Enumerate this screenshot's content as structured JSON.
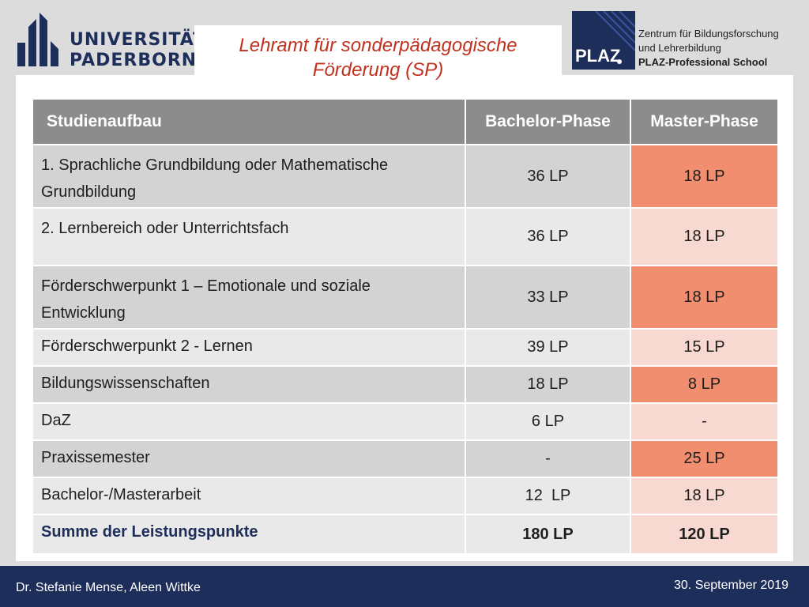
{
  "header": {
    "university_line1": "UNIVERSITÄT",
    "university_line2": "PADERBORN",
    "title_line1": "Lehramt für sonderpädagogische",
    "title_line2": "Förderung (SP)",
    "plaz_word": "PLAZ",
    "plaz_line1": "Zentrum für Bildungsforschung",
    "plaz_line2": "und Lehrerbildung",
    "plaz_line3": "PLAZ-Professional School"
  },
  "table": {
    "headers": [
      "Studienaufbau",
      "Bachelor-Phase",
      "Master-Phase"
    ],
    "rows": [
      {
        "label": "1. Sprachliche Grundbildung oder Mathematische Grundbildung",
        "bachelor": "36 LP",
        "master": "18 LP"
      },
      {
        "label": "2. Lernbereich oder Unterrichtsfach",
        "bachelor": "36 LP",
        "master": "18 LP"
      },
      {
        "label": "Förderschwerpunkt 1 – Emotionale und soziale Entwicklung",
        "bachelor": "33 LP",
        "master": "18 LP"
      },
      {
        "label": "Förderschwerpunkt 2 - Lernen",
        "bachelor": "39 LP",
        "master": "15 LP"
      },
      {
        "label": "Bildungswissenschaften",
        "bachelor": "18 LP",
        "master": "8 LP"
      },
      {
        "label": "DaZ",
        "bachelor": "6 LP",
        "master": "-"
      },
      {
        "label": "Praxissemester",
        "bachelor": "-",
        "master": "25 LP"
      },
      {
        "label": "Bachelor-/Masterarbeit",
        "bachelor": "12  LP",
        "master": "18 LP"
      },
      {
        "label": "Summe der Leistungspunkte",
        "bachelor": "180 LP",
        "master": "120 LP"
      }
    ]
  },
  "footer": {
    "authors": "Dr. Stefanie Mense, Aleen Wittke",
    "date": "30. September 2019"
  },
  "colors": {
    "navy": "#1e2e5a",
    "title_red": "#c0321f",
    "header_gray": "#8c8c8c",
    "salmon": "#f08e6f",
    "pink": "#f7d9d2"
  }
}
